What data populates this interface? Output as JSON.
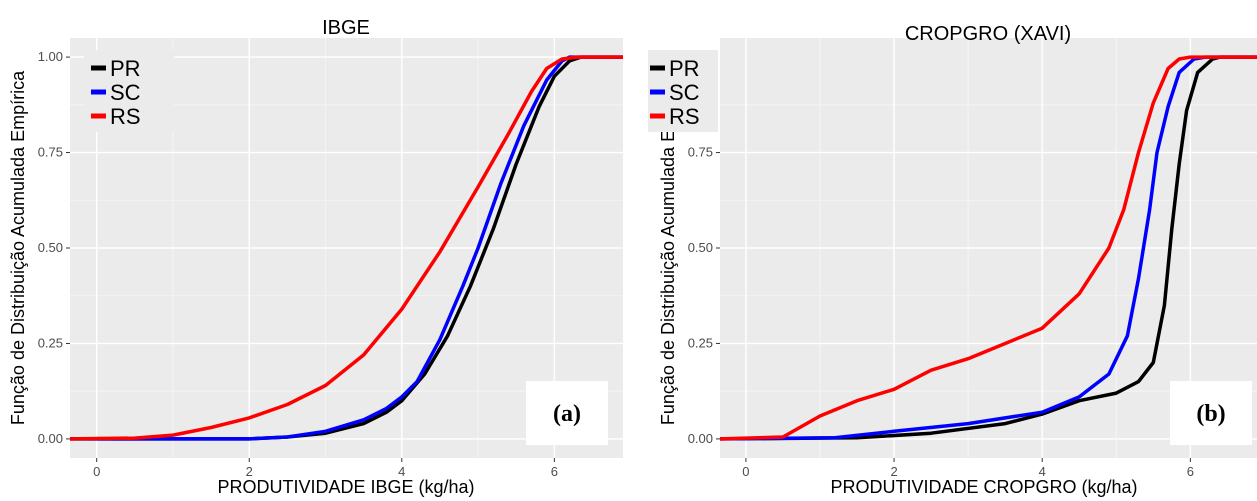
{
  "chart_data": [
    {
      "type": "line",
      "title": "IBGE",
      "xlabel": "PRODUTIVIDADE IBGE (kg/ha)",
      "ylabel": "Função de Distribuição Acumulada Empírica",
      "xlim": [
        -0.35,
        6.9
      ],
      "ylim": [
        -0.05,
        1.05
      ],
      "x_ticks": [
        "0",
        "2",
        "4",
        "6"
      ],
      "y_ticks": [
        "0.00",
        "0.25",
        "0.50",
        "0.75",
        "1.00"
      ],
      "grid": true,
      "legend_position": "top-left",
      "panel_label": "(a)",
      "series": [
        {
          "name": "PR",
          "color": "#000000",
          "points": [
            [
              -0.35,
              0
            ],
            [
              2.0,
              0.0
            ],
            [
              2.5,
              0.005
            ],
            [
              3.0,
              0.015
            ],
            [
              3.5,
              0.04
            ],
            [
              3.8,
              0.07
            ],
            [
              4.0,
              0.1
            ],
            [
              4.3,
              0.17
            ],
            [
              4.6,
              0.27
            ],
            [
              4.9,
              0.4
            ],
            [
              5.2,
              0.55
            ],
            [
              5.5,
              0.72
            ],
            [
              5.8,
              0.87
            ],
            [
              6.0,
              0.95
            ],
            [
              6.2,
              0.99
            ],
            [
              6.35,
              1.0
            ],
            [
              6.9,
              1.0
            ]
          ]
        },
        {
          "name": "SC",
          "color": "#0000ff",
          "points": [
            [
              -0.35,
              0
            ],
            [
              2.0,
              0.0
            ],
            [
              2.5,
              0.005
            ],
            [
              3.0,
              0.02
            ],
            [
              3.5,
              0.05
            ],
            [
              3.8,
              0.08
            ],
            [
              4.0,
              0.11
            ],
            [
              4.2,
              0.15
            ],
            [
              4.5,
              0.26
            ],
            [
              4.8,
              0.4
            ],
            [
              5.0,
              0.5
            ],
            [
              5.3,
              0.67
            ],
            [
              5.6,
              0.82
            ],
            [
              5.9,
              0.94
            ],
            [
              6.1,
              0.99
            ],
            [
              6.2,
              1.0
            ],
            [
              6.9,
              1.0
            ]
          ]
        },
        {
          "name": "RS",
          "color": "#ff0000",
          "points": [
            [
              -0.35,
              0
            ],
            [
              0.5,
              0.002
            ],
            [
              1.0,
              0.01
            ],
            [
              1.5,
              0.03
            ],
            [
              2.0,
              0.055
            ],
            [
              2.5,
              0.09
            ],
            [
              3.0,
              0.14
            ],
            [
              3.5,
              0.22
            ],
            [
              4.0,
              0.34
            ],
            [
              4.5,
              0.49
            ],
            [
              5.0,
              0.66
            ],
            [
              5.4,
              0.8
            ],
            [
              5.7,
              0.91
            ],
            [
              5.9,
              0.97
            ],
            [
              6.1,
              0.995
            ],
            [
              6.3,
              1.0
            ],
            [
              6.9,
              1.0
            ]
          ]
        }
      ]
    },
    {
      "type": "line",
      "title": "CROPGRO (XAVI)",
      "xlabel": "PRODUTIVIDADE CROPGRO (kg/ha)",
      "ylabel": "Função de Distribuição Acumulada Empírica",
      "xlim": [
        -0.35,
        6.9
      ],
      "ylim": [
        -0.05,
        1.05
      ],
      "x_ticks": [
        "0",
        "2",
        "4",
        "6"
      ],
      "y_ticks": [
        "0.00",
        "0.25",
        "0.50",
        "0.75"
      ],
      "grid": true,
      "legend_position": "top-left",
      "panel_label": "(b)",
      "series": [
        {
          "name": "PR",
          "color": "#000000",
          "points": [
            [
              -0.35,
              0
            ],
            [
              1.5,
              0.003
            ],
            [
              2.5,
              0.015
            ],
            [
              3.5,
              0.04
            ],
            [
              4.0,
              0.065
            ],
            [
              4.5,
              0.1
            ],
            [
              5.0,
              0.12
            ],
            [
              5.3,
              0.15
            ],
            [
              5.5,
              0.2
            ],
            [
              5.65,
              0.35
            ],
            [
              5.75,
              0.55
            ],
            [
              5.85,
              0.72
            ],
            [
              5.95,
              0.86
            ],
            [
              6.1,
              0.96
            ],
            [
              6.3,
              0.995
            ],
            [
              6.4,
              1.0
            ],
            [
              6.9,
              1.0
            ]
          ]
        },
        {
          "name": "SC",
          "color": "#0000ff",
          "points": [
            [
              -0.35,
              0
            ],
            [
              1.2,
              0.003
            ],
            [
              2.0,
              0.02
            ],
            [
              3.0,
              0.04
            ],
            [
              4.0,
              0.07
            ],
            [
              4.5,
              0.11
            ],
            [
              4.9,
              0.17
            ],
            [
              5.15,
              0.27
            ],
            [
              5.3,
              0.42
            ],
            [
              5.45,
              0.6
            ],
            [
              5.55,
              0.75
            ],
            [
              5.7,
              0.87
            ],
            [
              5.85,
              0.96
            ],
            [
              6.05,
              0.995
            ],
            [
              6.2,
              1.0
            ],
            [
              6.9,
              1.0
            ]
          ]
        },
        {
          "name": "RS",
          "color": "#ff0000",
          "points": [
            [
              -0.35,
              0
            ],
            [
              0.5,
              0.005
            ],
            [
              1.0,
              0.06
            ],
            [
              1.5,
              0.1
            ],
            [
              2.0,
              0.13
            ],
            [
              2.5,
              0.18
            ],
            [
              3.0,
              0.21
            ],
            [
              3.5,
              0.25
            ],
            [
              4.0,
              0.29
            ],
            [
              4.5,
              0.38
            ],
            [
              4.9,
              0.5
            ],
            [
              5.1,
              0.6
            ],
            [
              5.3,
              0.75
            ],
            [
              5.5,
              0.88
            ],
            [
              5.7,
              0.97
            ],
            [
              5.85,
              0.995
            ],
            [
              6.0,
              1.0
            ],
            [
              6.9,
              1.0
            ]
          ]
        }
      ]
    }
  ]
}
